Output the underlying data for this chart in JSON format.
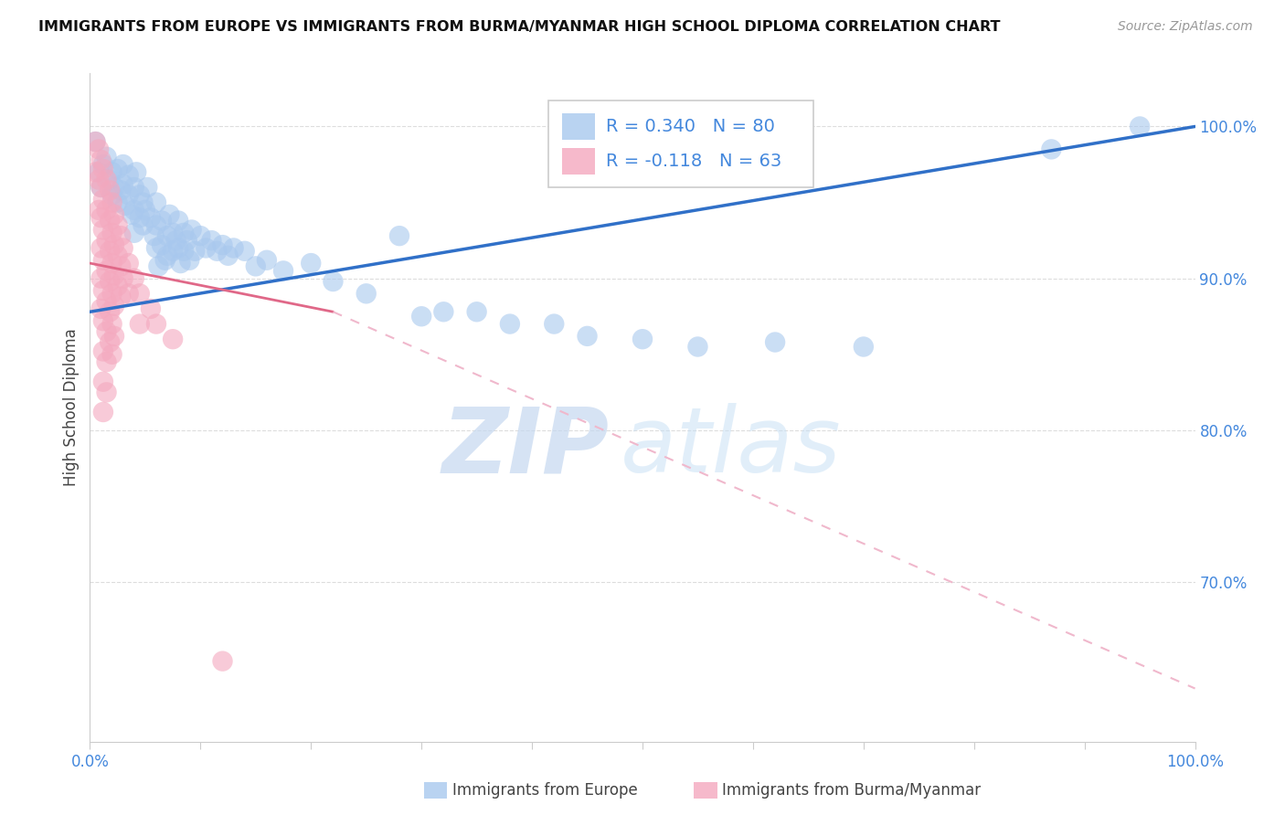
{
  "title": "IMMIGRANTS FROM EUROPE VS IMMIGRANTS FROM BURMA/MYANMAR HIGH SCHOOL DIPLOMA CORRELATION CHART",
  "source": "Source: ZipAtlas.com",
  "ylabel": "High School Diploma",
  "legend_blue_label": "Immigrants from Europe",
  "legend_pink_label": "Immigrants from Burma/Myanmar",
  "watermark_zip": "ZIP",
  "watermark_atlas": "atlas",
  "blue_color": "#a8c8ee",
  "pink_color": "#f4a8be",
  "blue_line_color": "#3070c8",
  "pink_solid_color": "#e06888",
  "pink_dash_color": "#f0b8cc",
  "blue_scatter": [
    [
      0.005,
      0.99
    ],
    [
      0.008,
      0.97
    ],
    [
      0.01,
      0.96
    ],
    [
      0.012,
      0.975
    ],
    [
      0.015,
      0.98
    ],
    [
      0.018,
      0.965
    ],
    [
      0.02,
      0.97
    ],
    [
      0.02,
      0.955
    ],
    [
      0.022,
      0.96
    ],
    [
      0.025,
      0.95
    ],
    [
      0.025,
      0.972
    ],
    [
      0.028,
      0.958
    ],
    [
      0.03,
      0.975
    ],
    [
      0.03,
      0.962
    ],
    [
      0.032,
      0.948
    ],
    [
      0.035,
      0.968
    ],
    [
      0.035,
      0.955
    ],
    [
      0.038,
      0.942
    ],
    [
      0.04,
      0.96
    ],
    [
      0.04,
      0.945
    ],
    [
      0.04,
      0.93
    ],
    [
      0.042,
      0.97
    ],
    [
      0.045,
      0.955
    ],
    [
      0.045,
      0.94
    ],
    [
      0.048,
      0.95
    ],
    [
      0.048,
      0.935
    ],
    [
      0.05,
      0.945
    ],
    [
      0.052,
      0.96
    ],
    [
      0.055,
      0.94
    ],
    [
      0.058,
      0.928
    ],
    [
      0.06,
      0.95
    ],
    [
      0.06,
      0.935
    ],
    [
      0.06,
      0.92
    ],
    [
      0.062,
      0.908
    ],
    [
      0.065,
      0.938
    ],
    [
      0.065,
      0.922
    ],
    [
      0.068,
      0.912
    ],
    [
      0.07,
      0.928
    ],
    [
      0.07,
      0.915
    ],
    [
      0.072,
      0.942
    ],
    [
      0.075,
      0.93
    ],
    [
      0.075,
      0.918
    ],
    [
      0.078,
      0.925
    ],
    [
      0.08,
      0.938
    ],
    [
      0.08,
      0.92
    ],
    [
      0.082,
      0.91
    ],
    [
      0.085,
      0.93
    ],
    [
      0.085,
      0.918
    ],
    [
      0.088,
      0.925
    ],
    [
      0.09,
      0.912
    ],
    [
      0.092,
      0.932
    ],
    [
      0.095,
      0.918
    ],
    [
      0.1,
      0.928
    ],
    [
      0.105,
      0.92
    ],
    [
      0.11,
      0.925
    ],
    [
      0.115,
      0.918
    ],
    [
      0.12,
      0.922
    ],
    [
      0.125,
      0.915
    ],
    [
      0.13,
      0.92
    ],
    [
      0.14,
      0.918
    ],
    [
      0.15,
      0.908
    ],
    [
      0.16,
      0.912
    ],
    [
      0.175,
      0.905
    ],
    [
      0.2,
      0.91
    ],
    [
      0.22,
      0.898
    ],
    [
      0.25,
      0.89
    ],
    [
      0.28,
      0.928
    ],
    [
      0.3,
      0.875
    ],
    [
      0.32,
      0.878
    ],
    [
      0.35,
      0.878
    ],
    [
      0.38,
      0.87
    ],
    [
      0.42,
      0.87
    ],
    [
      0.45,
      0.862
    ],
    [
      0.5,
      0.86
    ],
    [
      0.55,
      0.855
    ],
    [
      0.62,
      0.858
    ],
    [
      0.7,
      0.855
    ],
    [
      0.87,
      0.985
    ],
    [
      0.95,
      1.0
    ]
  ],
  "pink_scatter": [
    [
      0.005,
      0.99
    ],
    [
      0.005,
      0.97
    ],
    [
      0.008,
      0.985
    ],
    [
      0.008,
      0.965
    ],
    [
      0.008,
      0.945
    ],
    [
      0.01,
      0.978
    ],
    [
      0.01,
      0.96
    ],
    [
      0.01,
      0.94
    ],
    [
      0.01,
      0.92
    ],
    [
      0.01,
      0.9
    ],
    [
      0.01,
      0.88
    ],
    [
      0.012,
      0.972
    ],
    [
      0.012,
      0.952
    ],
    [
      0.012,
      0.932
    ],
    [
      0.012,
      0.912
    ],
    [
      0.012,
      0.892
    ],
    [
      0.012,
      0.872
    ],
    [
      0.012,
      0.852
    ],
    [
      0.012,
      0.832
    ],
    [
      0.012,
      0.812
    ],
    [
      0.015,
      0.965
    ],
    [
      0.015,
      0.945
    ],
    [
      0.015,
      0.925
    ],
    [
      0.015,
      0.905
    ],
    [
      0.015,
      0.885
    ],
    [
      0.015,
      0.865
    ],
    [
      0.015,
      0.845
    ],
    [
      0.015,
      0.825
    ],
    [
      0.018,
      0.958
    ],
    [
      0.018,
      0.938
    ],
    [
      0.018,
      0.918
    ],
    [
      0.018,
      0.898
    ],
    [
      0.018,
      0.878
    ],
    [
      0.018,
      0.858
    ],
    [
      0.02,
      0.95
    ],
    [
      0.02,
      0.93
    ],
    [
      0.02,
      0.91
    ],
    [
      0.02,
      0.89
    ],
    [
      0.02,
      0.87
    ],
    [
      0.02,
      0.85
    ],
    [
      0.022,
      0.942
    ],
    [
      0.022,
      0.922
    ],
    [
      0.022,
      0.902
    ],
    [
      0.022,
      0.882
    ],
    [
      0.022,
      0.862
    ],
    [
      0.025,
      0.935
    ],
    [
      0.025,
      0.915
    ],
    [
      0.025,
      0.895
    ],
    [
      0.028,
      0.928
    ],
    [
      0.028,
      0.908
    ],
    [
      0.028,
      0.888
    ],
    [
      0.03,
      0.92
    ],
    [
      0.03,
      0.9
    ],
    [
      0.035,
      0.91
    ],
    [
      0.035,
      0.89
    ],
    [
      0.04,
      0.9
    ],
    [
      0.045,
      0.89
    ],
    [
      0.045,
      0.87
    ],
    [
      0.055,
      0.88
    ],
    [
      0.06,
      0.87
    ],
    [
      0.075,
      0.86
    ],
    [
      0.12,
      0.648
    ]
  ],
  "blue_line": {
    "x0": 0.0,
    "x1": 1.0,
    "y0": 0.878,
    "y1": 1.0
  },
  "pink_solid_line": {
    "x0": 0.0,
    "x1": 0.22,
    "y0": 0.91,
    "y1": 0.878
  },
  "pink_dash_line": {
    "x0": 0.22,
    "x1": 1.0,
    "y0": 0.878,
    "y1": 0.63
  },
  "ylim": [
    0.595,
    1.035
  ],
  "xlim": [
    0.0,
    1.0
  ],
  "ytick_positions": [
    0.7,
    0.8,
    0.9,
    1.0
  ],
  "ytick_labels": [
    "70.0%",
    "80.0%",
    "90.0%",
    "100.0%"
  ],
  "xtick_positions": [
    0.0,
    0.1,
    0.2,
    0.3,
    0.4,
    0.5,
    0.6,
    0.7,
    0.8,
    0.9,
    1.0
  ],
  "axis_color": "#cccccc",
  "label_color": "#4488dd",
  "text_color": "#444444",
  "source_color": "#999999",
  "title_fontsize": 11.5,
  "source_fontsize": 10,
  "tick_fontsize": 12,
  "ylabel_fontsize": 12
}
